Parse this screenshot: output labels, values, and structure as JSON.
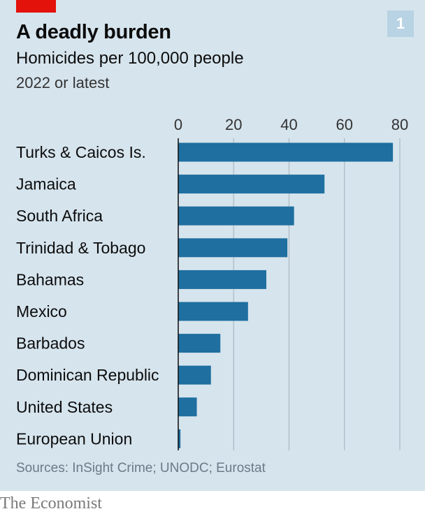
{
  "header": {
    "title": "A deadly burden",
    "subtitle": "Homicides per 100,000 people",
    "note": "2022 or latest",
    "chart_number": "1"
  },
  "footer": {
    "source": "Sources: InSight Crime; UNODC; Eurostat",
    "brand": "The Economist"
  },
  "colors": {
    "background": "#d6e4ed",
    "bar": "#1f6fa0",
    "gridline": "#a9b8c3",
    "accent": "#e3120b"
  },
  "chart_data": {
    "type": "bar",
    "orientation": "horizontal",
    "title": "A deadly burden",
    "subtitle": "Homicides per 100,000 people",
    "xlim": [
      0,
      80
    ],
    "xticks": [
      0,
      20,
      40,
      60,
      80
    ],
    "tick_labels": [
      "0",
      "20",
      "40",
      "60",
      "80"
    ],
    "grid": true,
    "categories": [
      "Turks & Caicos Is.",
      "Jamaica",
      "South Africa",
      "Trinidad & Tobago",
      "Bahamas",
      "Mexico",
      "Barbados",
      "Dominican Republic",
      "United States",
      "European Union"
    ],
    "values": [
      77.5,
      52.8,
      41.8,
      39.4,
      31.8,
      25.2,
      15.2,
      11.8,
      6.7,
      0.8
    ]
  }
}
